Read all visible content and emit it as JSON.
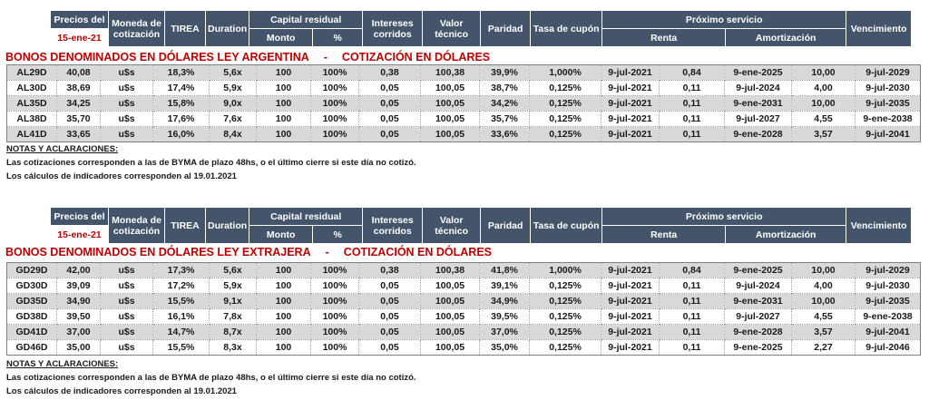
{
  "colors": {
    "header_bg": "#44546A",
    "accent_red": "#C00000",
    "row_stripe": "#D9D9D9"
  },
  "header": {
    "precios_label": "Precios del",
    "precios_date": "15-ene-21",
    "moneda": "Moneda de cotización",
    "tirea": "TIREA",
    "duration": "Duration",
    "capital_residual": "Capital residual",
    "monto": "Monto",
    "pct": "%",
    "intereses": "Intereses corridos",
    "valor_tecnico": "Valor técnico",
    "paridad": "Paridad",
    "tasa_cupon": "Tasa de cupón",
    "proximo_servicio": "Próximo servicio",
    "renta": "Renta",
    "amortizacion": "Amortización",
    "vencimiento": "Vencimiento"
  },
  "sections": [
    {
      "law_title": "BONOS DENOMINADOS EN DÓLARES LEY ARGENTINA",
      "separator": "-",
      "quote_title": "COTIZACIÓN EN DÓLARES",
      "rows": [
        [
          "AL29D",
          "40,08",
          "u$s",
          "18,3%",
          "5,6x",
          "100",
          "100%",
          "0,38",
          "100,38",
          "39,9%",
          "1,000%",
          "9-jul-2021",
          "0,84",
          "9-ene-2025",
          "10,00",
          "9-jul-2029"
        ],
        [
          "AL30D",
          "38,69",
          "u$s",
          "17,4%",
          "5,9x",
          "100",
          "100%",
          "0,05",
          "100,05",
          "38,7%",
          "0,125%",
          "9-jul-2021",
          "0,11",
          "9-jul-2024",
          "4,00",
          "9-jul-2030"
        ],
        [
          "AL35D",
          "34,25",
          "u$s",
          "15,8%",
          "9,0x",
          "100",
          "100%",
          "0,05",
          "100,05",
          "34,2%",
          "0,125%",
          "9-jul-2021",
          "0,11",
          "9-ene-2031",
          "10,00",
          "9-jul-2035"
        ],
        [
          "AL38D",
          "35,70",
          "u$s",
          "17,6%",
          "7,6x",
          "100",
          "100%",
          "0,05",
          "100,05",
          "35,7%",
          "0,125%",
          "9-jul-2021",
          "0,11",
          "9-jul-2027",
          "4,55",
          "9-ene-2038"
        ],
        [
          "AL41D",
          "33,65",
          "u$s",
          "16,0%",
          "8,4x",
          "100",
          "100%",
          "0,05",
          "100,05",
          "33,6%",
          "0,125%",
          "9-jul-2021",
          "0,11",
          "9-ene-2028",
          "3,57",
          "9-jul-2041"
        ]
      ]
    },
    {
      "law_title": "BONOS DENOMINADOS EN DÓLARES LEY EXTRAJERA",
      "separator": "-",
      "quote_title": "COTIZACIÓN EN DÓLARES",
      "rows": [
        [
          "GD29D",
          "42,00",
          "u$s",
          "17,3%",
          "5,6x",
          "100",
          "100%",
          "0,38",
          "100,38",
          "41,8%",
          "1,000%",
          "9-jul-2021",
          "0,84",
          "9-ene-2025",
          "10,00",
          "9-jul-2029"
        ],
        [
          "GD30D",
          "39,09",
          "u$s",
          "17,2%",
          "5,9x",
          "100",
          "100%",
          "0,05",
          "100,05",
          "39,1%",
          "0,125%",
          "9-jul-2021",
          "0,11",
          "9-jul-2024",
          "4,00",
          "9-jul-2030"
        ],
        [
          "GD35D",
          "34,90",
          "u$s",
          "15,5%",
          "9,1x",
          "100",
          "100%",
          "0,05",
          "100,05",
          "34,9%",
          "0,125%",
          "9-jul-2021",
          "0,11",
          "9-ene-2031",
          "10,00",
          "9-jul-2035"
        ],
        [
          "GD38D",
          "39,50",
          "u$s",
          "16,1%",
          "7,8x",
          "100",
          "100%",
          "0,05",
          "100,05",
          "39,5%",
          "0,125%",
          "9-jul-2021",
          "0,11",
          "9-jul-2027",
          "4,55",
          "9-ene-2038"
        ],
        [
          "GD41D",
          "37,00",
          "u$s",
          "14,7%",
          "8,7x",
          "100",
          "100%",
          "0,05",
          "100,05",
          "37,0%",
          "0,125%",
          "9-jul-2021",
          "0,11",
          "9-ene-2028",
          "3,57",
          "9-jul-2041"
        ],
        [
          "GD46D",
          "35,00",
          "u$s",
          "15,5%",
          "8,3x",
          "100",
          "100%",
          "0,05",
          "100,05",
          "35,0%",
          "0,125%",
          "9-jul-2021",
          "0,11",
          "9-ene-2025",
          "2,27",
          "9-jul-2046"
        ]
      ]
    }
  ],
  "notes": {
    "heading": "NOTAS Y ACLARACIONES:",
    "line1": "Las cotizaciones corresponden a las de BYMA de plazo 48hs, o el último cierre si este día no cotizó.",
    "line2": "Los cálculos de indicadores corresponden al 19.01.2021"
  }
}
